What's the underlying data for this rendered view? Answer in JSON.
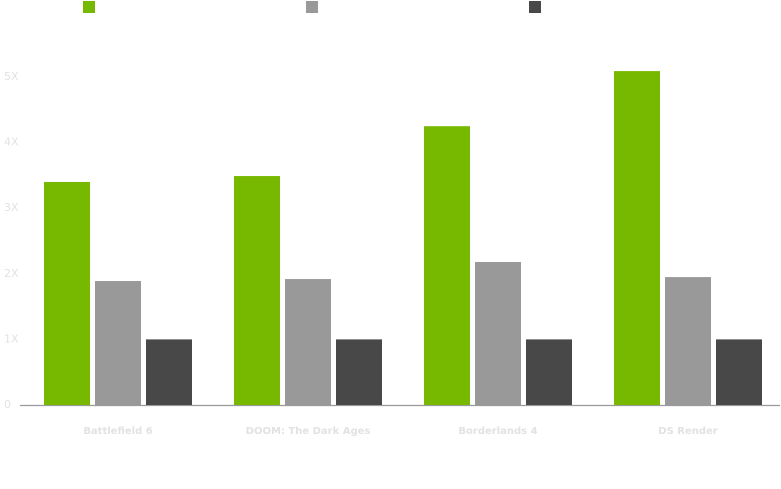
{
  "chart_data": {
    "type": "bar",
    "categories": [
      "Battlefield 6",
      "DOOM: The Dark Ages",
      "Borderlands 4",
      "DS Render"
    ],
    "series": [
      {
        "color": "#76b900",
        "values": [
          3.4,
          3.49,
          4.25,
          5.09
        ]
      },
      {
        "color": "#999999",
        "values": [
          1.89,
          1.92,
          2.18,
          1.95
        ]
      },
      {
        "color": "#484848",
        "values": [
          1.0,
          1.0,
          1.0,
          1.0
        ]
      }
    ],
    "ylim": [
      0,
      5.5
    ],
    "yticks": [
      0,
      {
        "value": 1,
        "label": "1X"
      },
      {
        "value": 2,
        "label": "2X"
      },
      {
        "value": 3,
        "label": "3X"
      },
      {
        "value": 4,
        "label": "4X"
      },
      {
        "value": 5,
        "label": "5X"
      }
    ],
    "grid": false
  }
}
